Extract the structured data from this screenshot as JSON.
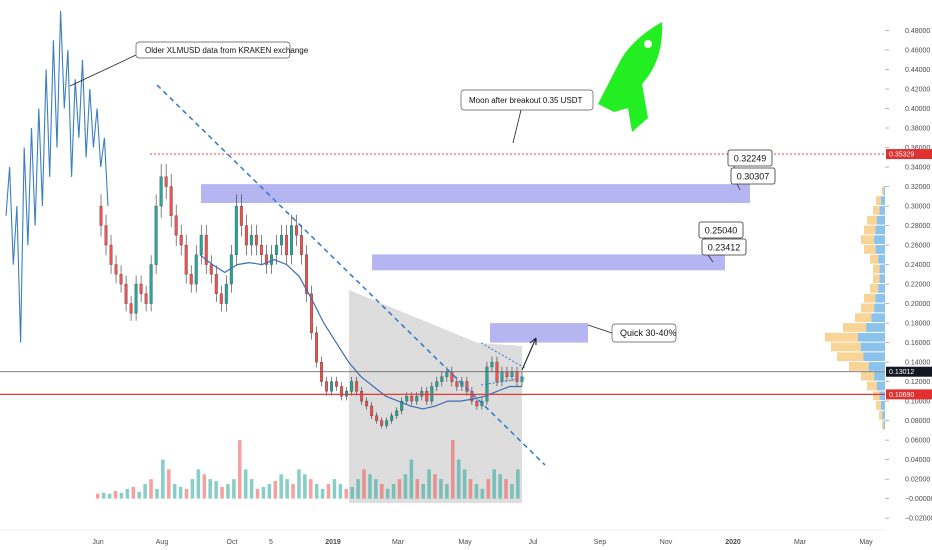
{
  "colors": {
    "up": "#26a69a",
    "down": "#ef5350",
    "historical_line": "#3a7fc1",
    "moving_average": "#3d6fb0",
    "trendline": "#2e7ac9",
    "target_zone": "#a8a8f0",
    "consolidation_zone": "#d9d9d9",
    "moon_line": "#e03030",
    "support_line": "#e53935",
    "current_price_line": "#555555",
    "volume_profile_up": "#5aa9e6",
    "volume_profile_down": "#f5c26b",
    "rocket": "#22ee22"
  },
  "chart_data": {
    "type": "candlestick",
    "symbol": "XLMUSD",
    "y_axis": {
      "position": "right",
      "ylim": [
        -0.025,
        0.5
      ],
      "tick_labels": [
        "0.48000",
        "0.46000",
        "0.44000",
        "0.42000",
        "0.40000",
        "0.38000",
        "0.36000",
        "0.34000",
        "0.32000",
        "0.30000",
        "0.28000",
        "0.26000",
        "0.24000",
        "0.22000",
        "0.20000",
        "0.18000",
        "0.16000",
        "0.14000",
        "0.12000",
        "0.10000",
        "0.08000",
        "0.06000",
        "0.04000",
        "0.02000",
        "−0.00000",
        "−0.02000"
      ]
    },
    "x_axis": {
      "tick_labels": [
        "Jun",
        "Aug",
        "Oct",
        "5",
        "2019",
        "Mar",
        "May",
        "Jul",
        "Sep",
        "Nov",
        "2020",
        "Mar",
        "May"
      ],
      "year_labels": [
        "2019",
        "2020"
      ]
    },
    "horizontal_lines": [
      {
        "name": "moon-line",
        "price": 0.35329,
        "style": "dotted",
        "label": "0.35329"
      },
      {
        "name": "current-price-line",
        "price": 0.13012,
        "style": "solid",
        "label": "0.13012"
      },
      {
        "name": "support-line",
        "price": 0.1069,
        "style": "solid",
        "label": "0.10690"
      }
    ],
    "target_zones": [
      {
        "name": "target-zone-3",
        "from": 0.30307,
        "to": 0.32249,
        "labels": [
          "0.32249",
          "0.30307"
        ]
      },
      {
        "name": "target-zone-2",
        "from": 0.23412,
        "to": 0.2504,
        "labels": [
          "0.25040",
          "0.23412"
        ]
      },
      {
        "name": "target-zone-1",
        "from": 0.16,
        "to": 0.18,
        "label": "Quick 30-40%"
      }
    ],
    "annotations": [
      {
        "name": "older-data-note",
        "text": "Older XLMUSD data from KRAKEN exchange"
      },
      {
        "name": "moon-note",
        "text": "Moon after breakout 0.35 USDT"
      },
      {
        "name": "quick-target-note",
        "text": "Quick 30-40%"
      }
    ],
    "series": [
      {
        "style": "line",
        "values": [
          0.29,
          0.34,
          0.24,
          0.3,
          0.16,
          0.36,
          0.26,
          0.38,
          0.28,
          0.4,
          0.3,
          0.44,
          0.33,
          0.47,
          0.36,
          0.5,
          0.4,
          0.46,
          0.33,
          0.43,
          0.37,
          0.45,
          0.35,
          0.42,
          0.36,
          0.4,
          0.34,
          0.37,
          0.3
        ]
      },
      {
        "style": "candles",
        "values": [
          0.3,
          0.28,
          0.26,
          0.24,
          0.23,
          0.22,
          0.2,
          0.19,
          0.22,
          0.21,
          0.2,
          0.24,
          0.3,
          0.33,
          0.32,
          0.29,
          0.27,
          0.26,
          0.23,
          0.22,
          0.25,
          0.27,
          0.24,
          0.23,
          0.21,
          0.2,
          0.22,
          0.25,
          0.3,
          0.28,
          0.26,
          0.27,
          0.26,
          0.25,
          0.24,
          0.25,
          0.26,
          0.27,
          0.25,
          0.28,
          0.27,
          0.25,
          0.21,
          0.17,
          0.14,
          0.12,
          0.11,
          0.12,
          0.115,
          0.105,
          0.11,
          0.12,
          0.11,
          0.1,
          0.095,
          0.085,
          0.08,
          0.075,
          0.08,
          0.085,
          0.09,
          0.1,
          0.105,
          0.1,
          0.105,
          0.11,
          0.1,
          0.115,
          0.12,
          0.125,
          0.13,
          0.12,
          0.115,
          0.12,
          0.11,
          0.1,
          0.095,
          0.1,
          0.135,
          0.14,
          0.12,
          0.13,
          0.125,
          0.13,
          0.12,
          0.125
        ]
      },
      {
        "style": "moving-average",
        "values": [
          0.25,
          0.24,
          0.232,
          0.24,
          0.242,
          0.24,
          0.245,
          0.24,
          0.228,
          0.205,
          0.18,
          0.16,
          0.14,
          0.125,
          0.115,
          0.105,
          0.1,
          0.095,
          0.092,
          0.095,
          0.1,
          0.1,
          0.102,
          0.105,
          0.11,
          0.115,
          0.115
        ]
      }
    ],
    "volume": {
      "values": [
        0.005,
        0.006,
        0.005,
        0.008,
        0.006,
        0.01,
        0.012,
        0.007,
        0.015,
        0.02,
        0.01,
        0.04,
        0.03,
        0.015,
        0.012,
        0.01,
        0.02,
        0.03,
        0.025,
        0.02,
        0.018,
        0.012,
        0.015,
        0.02,
        0.06,
        0.03,
        0.02,
        0.01,
        0.012,
        0.015,
        0.018,
        0.025,
        0.02,
        0.015,
        0.03,
        0.025,
        0.02,
        0.015,
        0.01,
        0.015,
        0.02,
        0.015,
        0.01,
        0.012,
        0.02,
        0.03,
        0.025,
        0.02,
        0.015,
        0.01,
        0.015,
        0.02,
        0.025,
        0.04,
        0.02,
        0.015,
        0.03,
        0.025,
        0.02,
        0.015,
        0.06,
        0.04,
        0.03,
        0.02,
        0.015,
        0.01,
        0.02,
        0.03,
        0.025,
        0.02,
        0.015,
        0.03
      ]
    },
    "volume_profile": {
      "values": [
        0.05,
        0.15,
        0.2,
        0.3,
        0.35,
        0.4,
        0.35,
        0.25,
        0.2,
        0.2,
        0.25,
        0.35,
        0.4,
        0.5,
        0.7,
        1.0,
        0.9,
        0.8,
        0.6,
        0.4,
        0.3,
        0.2,
        0.15,
        0.1,
        0.05
      ]
    }
  },
  "price_badges": {
    "moon": "0.35329",
    "current": "0.13012",
    "support": "0.10690"
  }
}
